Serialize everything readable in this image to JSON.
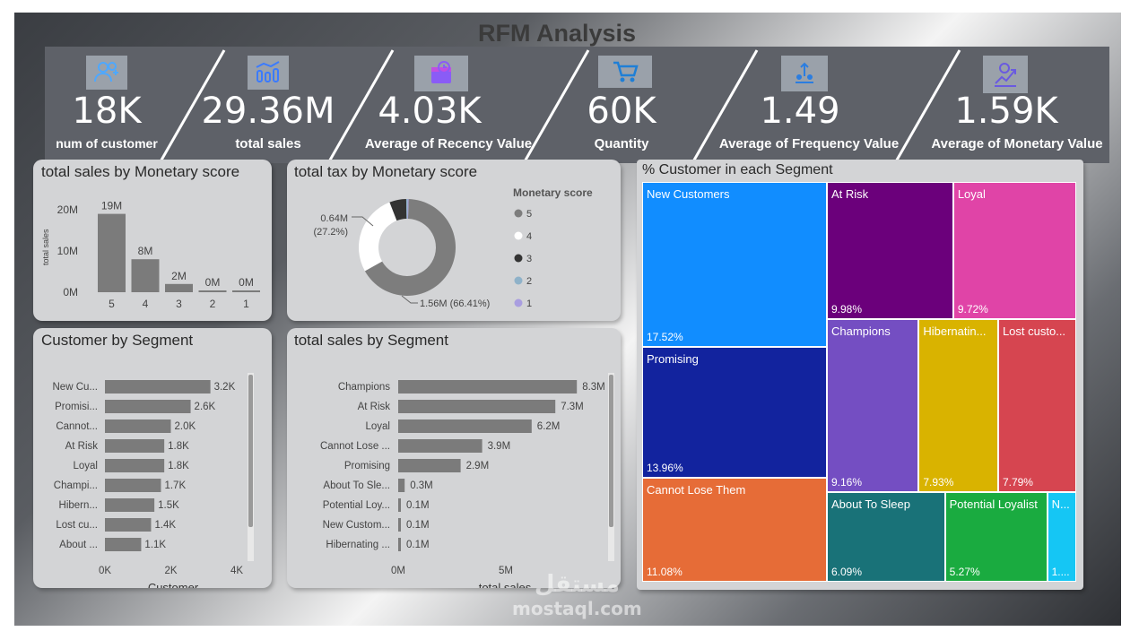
{
  "title": "RFM Analysis",
  "kpis": [
    {
      "icon": "users-icon",
      "value": "18K",
      "label": "num of customer"
    },
    {
      "icon": "sales-chart-icon",
      "value": "29.36M",
      "label": "total sales"
    },
    {
      "icon": "calendar-clock-icon",
      "value": "4.03K",
      "label": "Average of Recency Value"
    },
    {
      "icon": "cart-icon",
      "value": "60K",
      "label": "Quantity"
    },
    {
      "icon": "growth-icon",
      "value": "1.49",
      "label": "Average of Frequency Value"
    },
    {
      "icon": "money-growth-icon",
      "value": "1.59K",
      "label": "Average of Monetary Value"
    }
  ],
  "watermark": {
    "arabic": "مستقل",
    "latin": "mostaql.com"
  },
  "colors": {
    "bar": "#7b7b7b",
    "panel": "#d3d4d6",
    "kpi_bg": "#5e6168"
  },
  "chart_data": [
    {
      "id": "sales_by_monetary",
      "type": "bar",
      "title": "total sales by Monetary score",
      "categories": [
        "5",
        "4",
        "3",
        "2",
        "1"
      ],
      "values": [
        19,
        8,
        2,
        0,
        0
      ],
      "data_labels": [
        "19M",
        "8M",
        "2M",
        "0M",
        "0M"
      ],
      "yticks": [
        "0M",
        "10M",
        "20M"
      ],
      "ylabel": "total sales",
      "ylim": [
        0,
        20
      ]
    },
    {
      "id": "tax_by_monetary",
      "type": "pie",
      "title": "total tax by Monetary score",
      "legend_title": "Monetary score",
      "slices": [
        {
          "label": "5",
          "value": 66.41,
          "color": "#7d7d7d"
        },
        {
          "label": "4",
          "value": 27.2,
          "color": "#ffffff"
        },
        {
          "label": "3",
          "value": 5.6,
          "color": "#333333"
        },
        {
          "label": "2",
          "value": 0.5,
          "color": "#8fb2c9"
        },
        {
          "label": "1",
          "value": 0.29,
          "color": "#a99ee0"
        }
      ],
      "annotations": [
        "0.64M",
        "(27.2%)",
        "1.56M (66.41%)"
      ]
    },
    {
      "id": "customer_by_segment",
      "type": "bar",
      "orientation": "horizontal",
      "title": "Customer by Segment",
      "categories": [
        "New Cu...",
        "Promisi...",
        "Cannot...",
        "At Risk",
        "Loyal",
        "Champi...",
        "Hibern...",
        "Lost cu...",
        "About ..."
      ],
      "values": [
        3.2,
        2.6,
        2.0,
        1.8,
        1.8,
        1.7,
        1.5,
        1.4,
        1.1
      ],
      "data_labels": [
        "3.2K",
        "2.6K",
        "2.0K",
        "1.8K",
        "1.8K",
        "1.7K",
        "1.5K",
        "1.4K",
        "1.1K"
      ],
      "xticks": [
        "0K",
        "2K",
        "4K"
      ],
      "xlabel": "Customer",
      "xlim": [
        0,
        4
      ]
    },
    {
      "id": "sales_by_segment",
      "type": "bar",
      "orientation": "horizontal",
      "title": "total sales by Segment",
      "categories": [
        "Champions",
        "At Risk",
        "Loyal",
        "Cannot Lose ...",
        "Promising",
        "About To Sle...",
        "Potential Loy...",
        "New Custom...",
        "Hibernating ..."
      ],
      "values": [
        8.3,
        7.3,
        6.2,
        3.9,
        2.9,
        0.3,
        0.1,
        0.1,
        0.1
      ],
      "data_labels": [
        "8.3M",
        "7.3M",
        "6.2M",
        "3.9M",
        "2.9M",
        "0.3M",
        "0.1M",
        "0.1M",
        "0.1M"
      ],
      "xticks": [
        "0M",
        "5M"
      ],
      "xlabel": "total sales",
      "xlim": [
        0,
        10
      ]
    },
    {
      "id": "customer_pct_segment",
      "type": "treemap",
      "title": "% Customer in each Segment",
      "items": [
        {
          "label": "New Customers",
          "value": 17.52,
          "pct": "17.52%",
          "color": "#118dff"
        },
        {
          "label": "Promising",
          "value": 13.96,
          "pct": "13.96%",
          "color": "#12239e"
        },
        {
          "label": "Cannot Lose Them",
          "value": 11.08,
          "pct": "11.08%",
          "color": "#e66c37"
        },
        {
          "label": "At Risk",
          "value": 9.98,
          "pct": "9.98%",
          "color": "#6b007b"
        },
        {
          "label": "Loyal",
          "value": 9.72,
          "pct": "9.72%",
          "color": "#e044a7"
        },
        {
          "label": "Champions",
          "value": 9.16,
          "pct": "9.16%",
          "color": "#744ec2"
        },
        {
          "label": "Hibernatin...",
          "value": 7.93,
          "pct": "7.93%",
          "color": "#d9b300"
        },
        {
          "label": "Lost custo...",
          "value": 7.79,
          "pct": "7.79%",
          "color": "#d64550"
        },
        {
          "label": "About To Sleep",
          "value": 6.09,
          "pct": "6.09%",
          "color": "#197278"
        },
        {
          "label": "Potential Loyalist",
          "value": 5.27,
          "pct": "5.27%",
          "color": "#1aab40"
        },
        {
          "label": "N...",
          "value": 1.5,
          "pct": "1....",
          "color": "#15c6f4"
        }
      ]
    }
  ]
}
